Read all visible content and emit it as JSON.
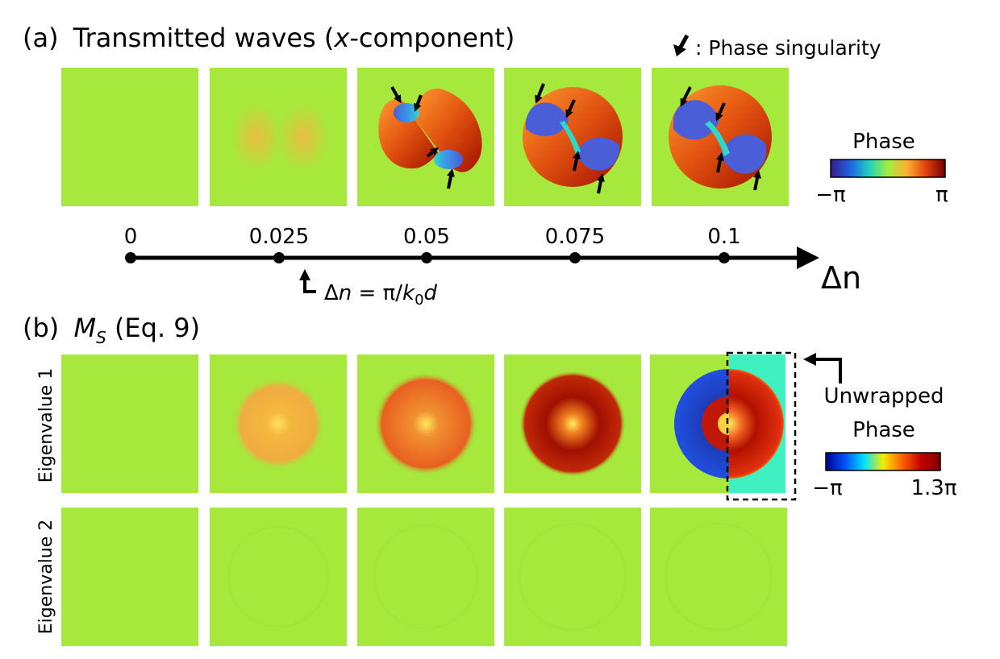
{
  "panel_a": {
    "label": "(a)",
    "title_before": "Transmitted waves (",
    "title_var": "x",
    "title_after": "-component)",
    "singularity_legend": ": Phase singularity"
  },
  "phase_colorbar": {
    "title": "Phase",
    "min_label": "−π",
    "max_label": "π",
    "colors": [
      "#3a1a8a",
      "#2060e0",
      "#20d0c0",
      "#a0f040",
      "#ffb030",
      "#e04010",
      "#700000"
    ]
  },
  "axis": {
    "ticks": [
      "0",
      "0.025",
      "0.05",
      "0.075",
      "0.1"
    ],
    "label": "Δn",
    "marker_text_before": "Δ",
    "marker_var_n": "n",
    "marker_eq": " = π/",
    "marker_var_k": "k",
    "marker_sub": "0",
    "marker_var_d": "d"
  },
  "panel_b": {
    "label": "(b)",
    "title_var": "M",
    "title_sub": "S",
    "title_after": " (Eq. 9)",
    "rows": [
      "Eigenvalue 1",
      "Eigenvalue 2"
    ]
  },
  "unwrapped_colorbar": {
    "title_line1": "Unwrapped",
    "title_line2": "Phase",
    "min_label": "−π",
    "max_label": "1.3π",
    "colors": [
      "#00008a",
      "#0050ff",
      "#00e0ff",
      "#f0f000",
      "#ff6000",
      "#c00000",
      "#800000"
    ]
  },
  "colors": {
    "background_phase": "#a6e83c",
    "eig2_tint": "#a2e23e"
  }
}
